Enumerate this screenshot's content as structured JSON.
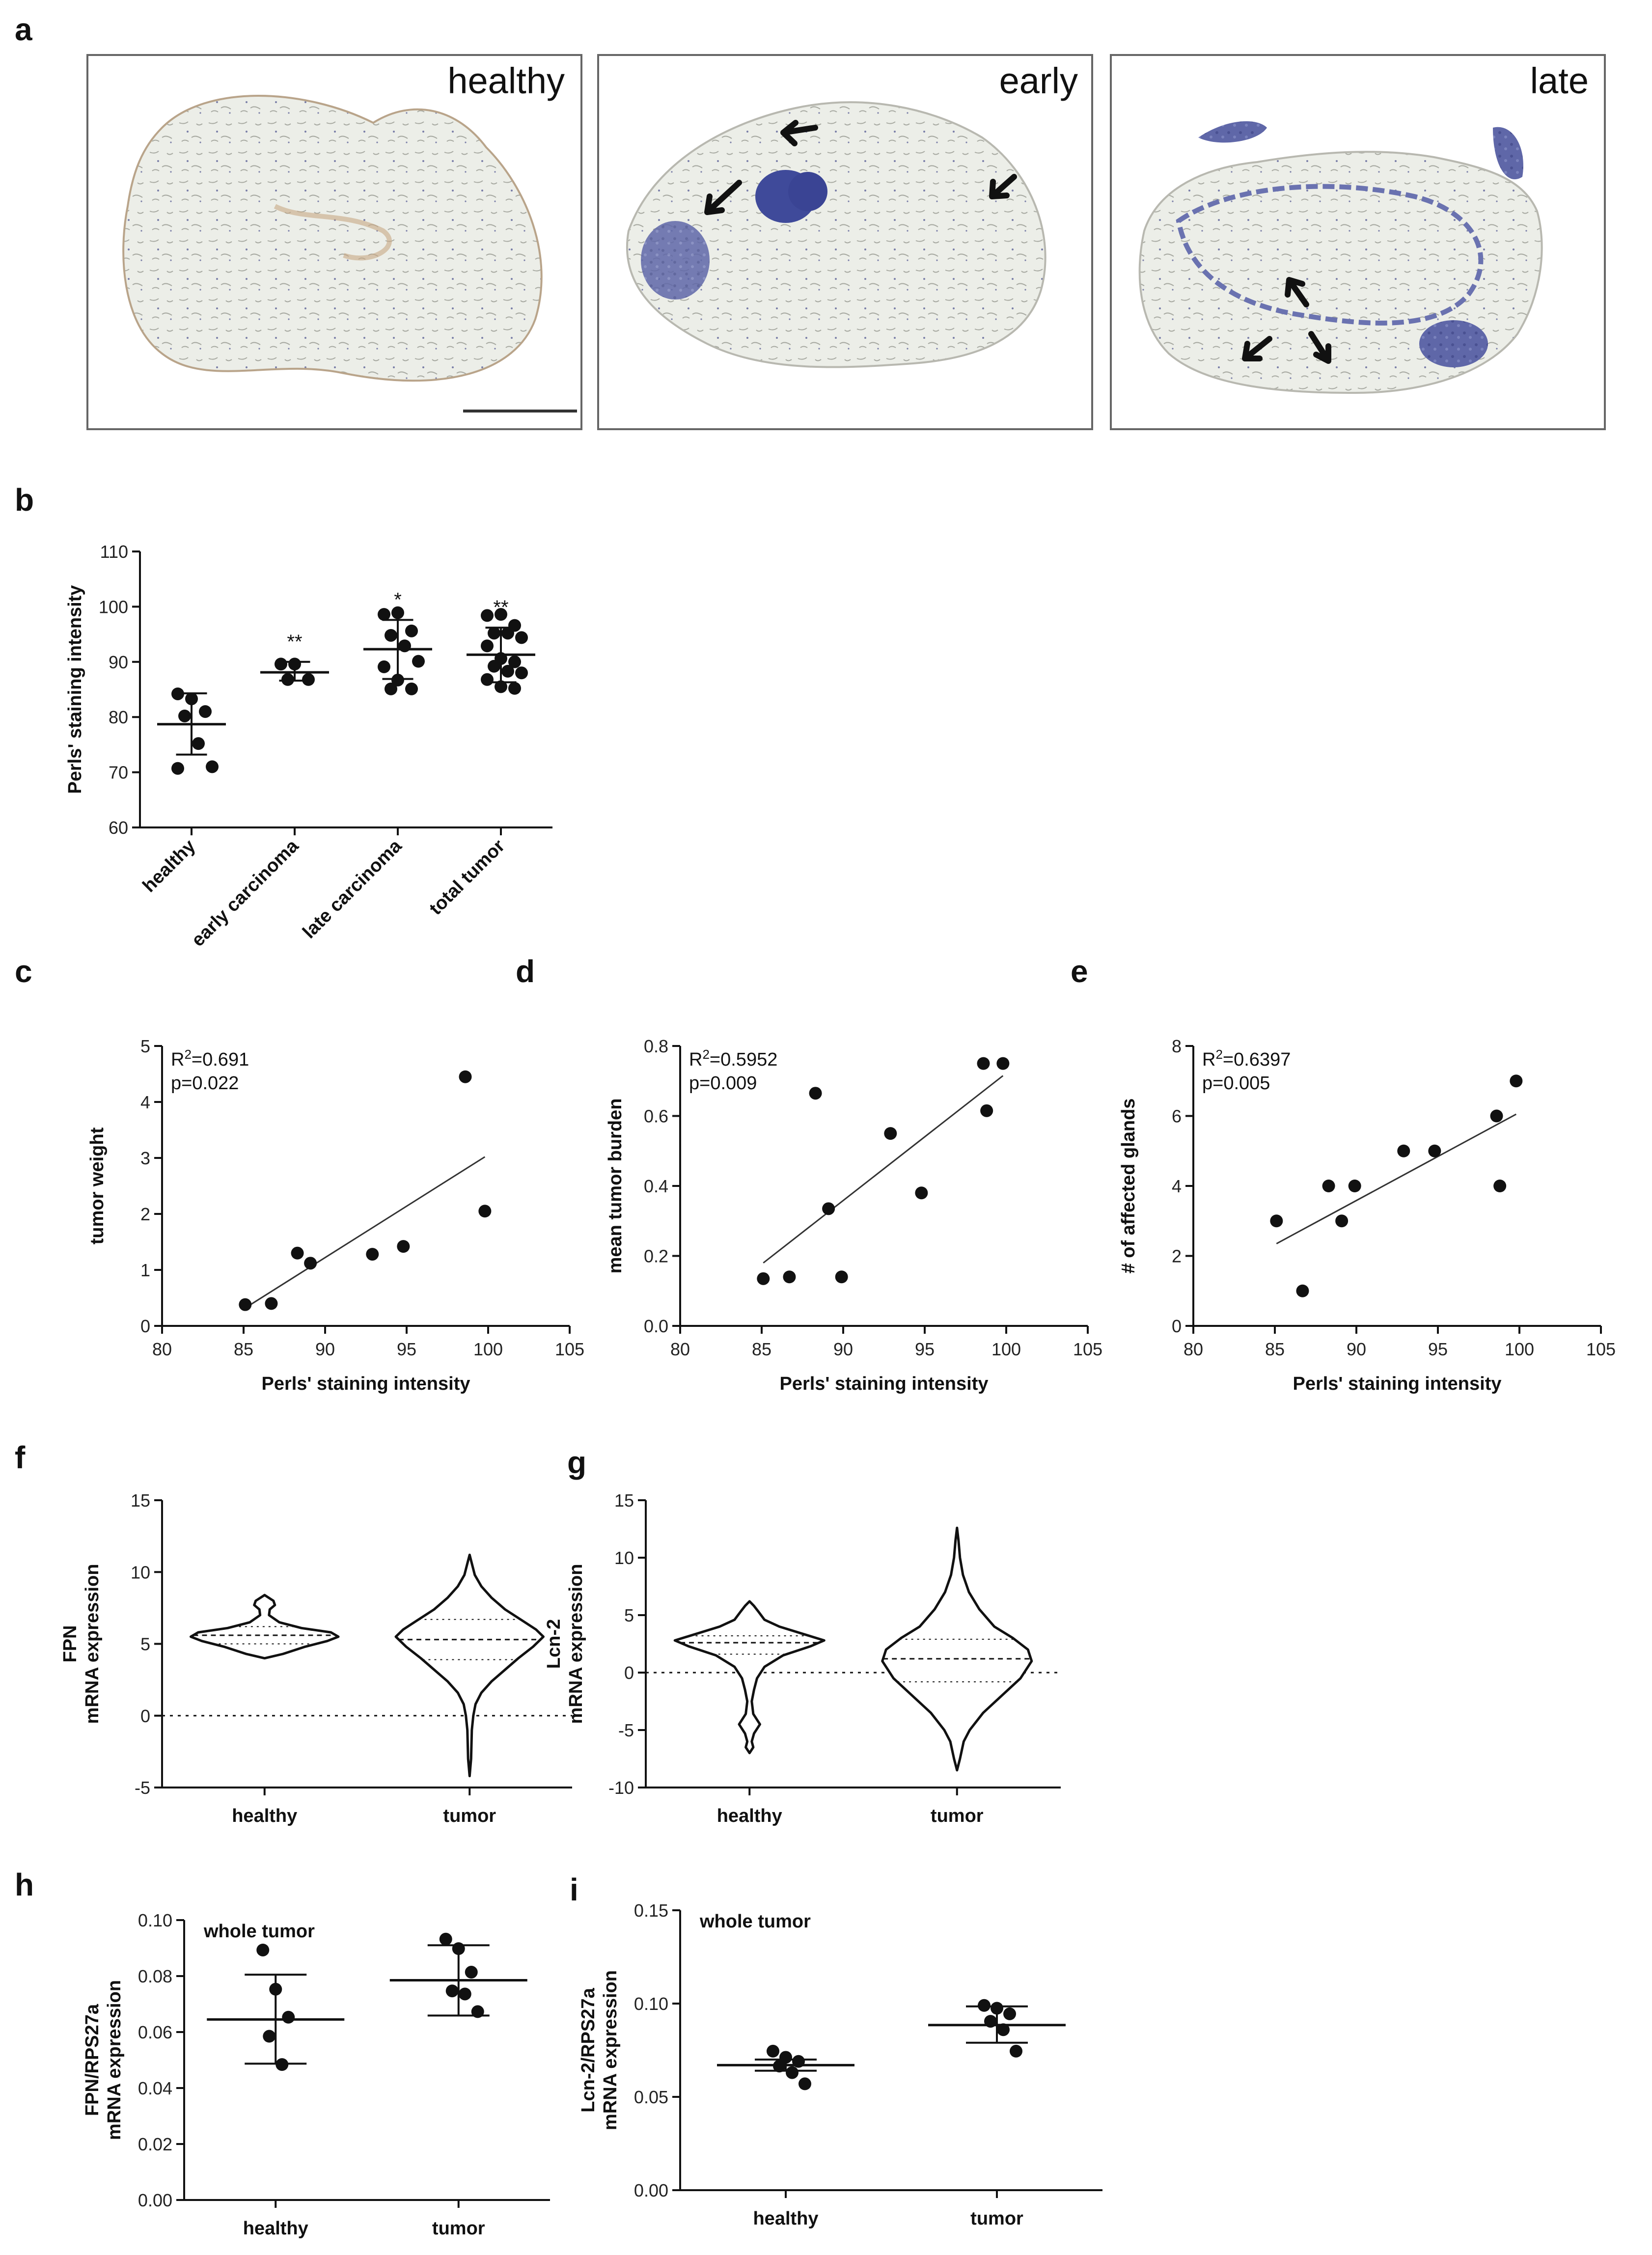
{
  "panel_a": {
    "letter": "a",
    "images": [
      {
        "label": "healthy"
      },
      {
        "label": "early"
      },
      {
        "label": "late"
      }
    ]
  },
  "colors": {
    "ink": "#111111",
    "tissue_blue": "#5a63a8",
    "tissue_bg": "#ecefea",
    "stain_brown": "#9c6b3c"
  },
  "chart_data": [
    {
      "id": "b",
      "letter": "b",
      "type": "scatter",
      "ylabel": "Perls' staining intensity",
      "xlabel": "",
      "categories": [
        "healthy",
        "early carcinoma",
        "late carcinoma",
        "total tumor"
      ],
      "ylim": [
        60,
        110
      ],
      "yticks": [
        60,
        70,
        80,
        90,
        100,
        110
      ],
      "groups": [
        {
          "category": "healthy",
          "mean": 78.7,
          "sd_low": 73.2,
          "sd_high": 84.3,
          "sig": "",
          "points": [
            84.2,
            83.3,
            81.0,
            80.2,
            75.2,
            71.0,
            70.7
          ]
        },
        {
          "category": "early carcinoma",
          "mean": 88.1,
          "sd_low": 86.6,
          "sd_high": 90.0,
          "sig": "**",
          "points": [
            89.6,
            89.6,
            86.8,
            86.8
          ]
        },
        {
          "category": "late carcinoma",
          "mean": 92.3,
          "sd_low": 86.9,
          "sd_high": 97.6,
          "sig": "*",
          "points": [
            98.6,
            98.9,
            95.6,
            94.8,
            92.9,
            90.1,
            89.1,
            86.7,
            85.1,
            85.1
          ]
        },
        {
          "category": "total tumor",
          "mean": 91.3,
          "sd_low": 86.3,
          "sd_high": 96.2,
          "sig": "**",
          "points": [
            98.4,
            98.6,
            96.6,
            95.2,
            95.2,
            94.4,
            92.9,
            90.6,
            90.0,
            89.2,
            88.3,
            88.0,
            86.8,
            85.5,
            85.2
          ]
        }
      ]
    },
    {
      "id": "c",
      "letter": "c",
      "type": "scatter",
      "xlabel": "Perls' staining intensity",
      "ylabel": "tumor weight",
      "xlim": [
        80,
        105
      ],
      "xticks": [
        80,
        85,
        90,
        95,
        100,
        105
      ],
      "ylim": [
        0,
        5
      ],
      "yticks": [
        0,
        1,
        2,
        3,
        4,
        5
      ],
      "r2_prefix": "R",
      "r2_value": "=0.691",
      "p_text": "p=0.022",
      "points": [
        [
          85.1,
          0.38
        ],
        [
          86.7,
          0.4
        ],
        [
          88.3,
          1.3
        ],
        [
          89.1,
          1.12
        ],
        [
          92.9,
          1.28
        ],
        [
          94.8,
          1.42
        ],
        [
          98.6,
          4.45
        ],
        [
          99.8,
          2.05
        ]
      ],
      "fit": [
        [
          85.1,
          0.32
        ],
        [
          99.8,
          3.02
        ]
      ]
    },
    {
      "id": "d",
      "letter": "d",
      "type": "scatter",
      "xlabel": "Perls' staining intensity",
      "ylabel": "mean tumor burden",
      "xlim": [
        80,
        105
      ],
      "xticks": [
        80,
        85,
        90,
        95,
        100,
        105
      ],
      "ylim": [
        0,
        0.8
      ],
      "yticks": [
        0.0,
        0.2,
        0.4,
        0.6,
        0.8
      ],
      "ytick_decimals": 1,
      "r2_prefix": "R",
      "r2_value": "=0.5952",
      "p_text": "p=0.009",
      "points": [
        [
          85.1,
          0.135
        ],
        [
          86.7,
          0.14
        ],
        [
          88.3,
          0.665
        ],
        [
          89.1,
          0.335
        ],
        [
          89.9,
          0.14
        ],
        [
          92.9,
          0.55
        ],
        [
          94.8,
          0.38
        ],
        [
          98.6,
          0.75
        ],
        [
          98.8,
          0.615
        ],
        [
          99.8,
          0.75
        ]
      ],
      "fit": [
        [
          85.1,
          0.18
        ],
        [
          99.8,
          0.715
        ]
      ]
    },
    {
      "id": "e",
      "letter": "e",
      "type": "scatter",
      "xlabel": "Perls' staining intensity",
      "ylabel": "# of affected glands",
      "xlim": [
        80,
        105
      ],
      "xticks": [
        80,
        85,
        90,
        95,
        100,
        105
      ],
      "ylim": [
        0,
        8
      ],
      "yticks": [
        0,
        2,
        4,
        6,
        8
      ],
      "r2_prefix": "R",
      "r2_value": "=0.6397",
      "p_text": "p=0.005",
      "points": [
        [
          85.1,
          3
        ],
        [
          86.7,
          1
        ],
        [
          88.3,
          4
        ],
        [
          89.1,
          3
        ],
        [
          89.9,
          4
        ],
        [
          92.9,
          5
        ],
        [
          94.8,
          5
        ],
        [
          98.6,
          6
        ],
        [
          98.8,
          4
        ],
        [
          99.8,
          7
        ]
      ],
      "fit": [
        [
          85.1,
          2.35
        ],
        [
          99.8,
          6.05
        ]
      ]
    },
    {
      "id": "f",
      "letter": "f",
      "type": "violin",
      "ylabel_line1": "FPN",
      "ylabel_line2": "mRNA expression",
      "categories": [
        "healthy",
        "tumor"
      ],
      "ylim": [
        -5,
        15
      ],
      "yticks": [
        -5,
        0,
        5,
        10,
        15
      ],
      "violins": [
        {
          "category": "healthy",
          "median": 5.6,
          "q1": 5.0,
          "q3": 6.2,
          "profile": [
            [
              4.0,
              0
            ],
            [
              4.3,
              0.25
            ],
            [
              4.8,
              0.55
            ],
            [
              5.2,
              0.85
            ],
            [
              5.5,
              1.0
            ],
            [
              5.8,
              0.9
            ],
            [
              6.1,
              0.5
            ],
            [
              6.5,
              0.2
            ],
            [
              7.0,
              0.06
            ],
            [
              7.4,
              0.07
            ],
            [
              7.7,
              0.14
            ],
            [
              8.0,
              0.12
            ],
            [
              8.4,
              0
            ]
          ]
        },
        {
          "category": "tumor",
          "median": 5.3,
          "q1": 3.9,
          "q3": 6.7,
          "profile": [
            [
              -4.2,
              0
            ],
            [
              -3.0,
              0.02
            ],
            [
              -1.0,
              0.03
            ],
            [
              0.0,
              0.05
            ],
            [
              0.8,
              0.08
            ],
            [
              1.6,
              0.16
            ],
            [
              2.4,
              0.3
            ],
            [
              3.2,
              0.48
            ],
            [
              4.0,
              0.66
            ],
            [
              4.8,
              0.86
            ],
            [
              5.5,
              1.0
            ],
            [
              6.0,
              0.9
            ],
            [
              6.6,
              0.72
            ],
            [
              7.4,
              0.48
            ],
            [
              8.2,
              0.3
            ],
            [
              9.0,
              0.16
            ],
            [
              9.8,
              0.07
            ],
            [
              10.6,
              0.03
            ],
            [
              11.2,
              0
            ]
          ]
        }
      ]
    },
    {
      "id": "g",
      "letter": "g",
      "type": "violin",
      "ylabel_line1": "Lcn-2",
      "ylabel_line2": "mRNA expression",
      "categories": [
        "healthy",
        "tumor"
      ],
      "ylim": [
        -10,
        15
      ],
      "yticks": [
        -10,
        -5,
        0,
        5,
        10,
        15
      ],
      "violins": [
        {
          "category": "healthy",
          "median": 2.6,
          "q1": 1.6,
          "q3": 3.2,
          "profile": [
            [
              -7.0,
              0
            ],
            [
              -6.5,
              0.05
            ],
            [
              -6.0,
              0.03
            ],
            [
              -5.3,
              0.06
            ],
            [
              -4.5,
              0.14
            ],
            [
              -3.6,
              0.05
            ],
            [
              -2.5,
              0.03
            ],
            [
              -1.5,
              0.06
            ],
            [
              -0.5,
              0.1
            ],
            [
              0.5,
              0.2
            ],
            [
              1.5,
              0.45
            ],
            [
              2.3,
              0.82
            ],
            [
              2.8,
              1.0
            ],
            [
              3.3,
              0.75
            ],
            [
              4.0,
              0.4
            ],
            [
              4.6,
              0.2
            ],
            [
              5.3,
              0.12
            ],
            [
              5.8,
              0.06
            ],
            [
              6.2,
              0
            ]
          ]
        },
        {
          "category": "tumor",
          "median": 1.2,
          "q1": -0.8,
          "q3": 2.9,
          "profile": [
            [
              -8.5,
              0
            ],
            [
              -7.5,
              0.04
            ],
            [
              -6.0,
              0.09
            ],
            [
              -5.0,
              0.17
            ],
            [
              -3.5,
              0.35
            ],
            [
              -2.0,
              0.6
            ],
            [
              -0.5,
              0.85
            ],
            [
              1.0,
              1.0
            ],
            [
              2.0,
              0.95
            ],
            [
              3.0,
              0.75
            ],
            [
              4.0,
              0.5
            ],
            [
              5.5,
              0.3
            ],
            [
              7.0,
              0.16
            ],
            [
              8.5,
              0.08
            ],
            [
              10.0,
              0.04
            ],
            [
              11.5,
              0.02
            ],
            [
              12.6,
              0
            ]
          ]
        }
      ]
    },
    {
      "id": "h",
      "letter": "h",
      "type": "scatter",
      "ylabel_line1": "FPN/RPS27a",
      "ylabel_line2": "mRNA expression",
      "inner_title": "whole tumor",
      "categories": [
        "healthy",
        "tumor"
      ],
      "ylim": [
        0,
        0.1
      ],
      "yticks": [
        0.0,
        0.02,
        0.04,
        0.06,
        0.08,
        0.1
      ],
      "ytick_decimals": 2,
      "groups": [
        {
          "category": "healthy",
          "mean": 0.0645,
          "sd_low": 0.0487,
          "sd_high": 0.0805,
          "points": [
            0.0893,
            0.0753,
            0.0653,
            0.0585,
            0.0484
          ]
        },
        {
          "category": "tumor",
          "mean": 0.0785,
          "sd_low": 0.0659,
          "sd_high": 0.091,
          "points": [
            0.0932,
            0.0898,
            0.0814,
            0.0747,
            0.0736,
            0.0673
          ]
        }
      ]
    },
    {
      "id": "i",
      "letter": "i",
      "type": "scatter",
      "ylabel_line1": "Lcn-2/RPS27a",
      "ylabel_line2": "mRNA expression",
      "inner_title": "whole tumor",
      "categories": [
        "healthy",
        "tumor"
      ],
      "ylim": [
        0,
        0.15
      ],
      "yticks": [
        0.0,
        0.05,
        0.1,
        0.15
      ],
      "ytick_decimals": 2,
      "groups": [
        {
          "category": "healthy",
          "mean": 0.067,
          "sd_low": 0.064,
          "sd_high": 0.07,
          "points": [
            0.0745,
            0.0712,
            0.069,
            0.0665,
            0.063,
            0.057
          ]
        },
        {
          "category": "tumor",
          "mean": 0.0885,
          "sd_low": 0.079,
          "sd_high": 0.0985,
          "points": [
            0.099,
            0.0975,
            0.0945,
            0.0905,
            0.086,
            0.0745
          ]
        }
      ]
    }
  ]
}
